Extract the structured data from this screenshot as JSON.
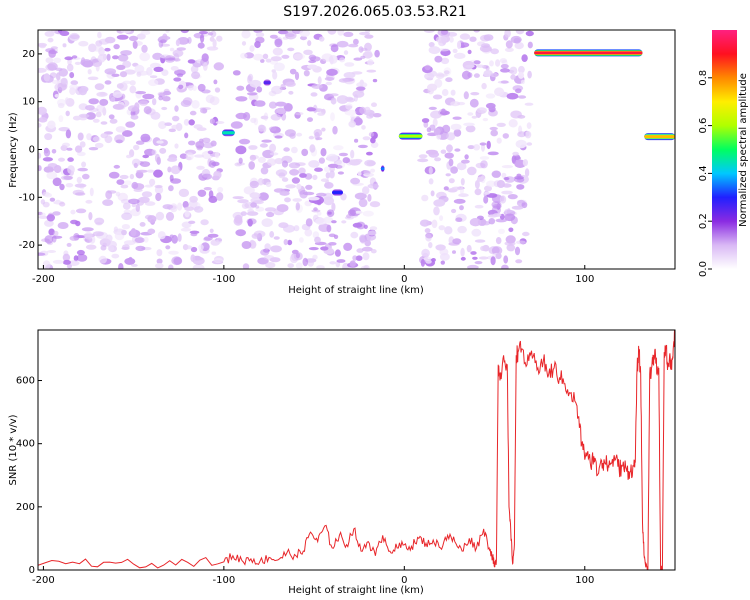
{
  "title": "S197.2026.065.03.53.R21",
  "colors": {
    "trace": "#e8262a",
    "axis": "#000000",
    "background": "#ffffff"
  },
  "chart_data": [
    {
      "type": "heatmap",
      "xlabel": "Height of straight line (km)",
      "ylabel": "Frequency (Hz)",
      "xlim": [
        -203,
        150
      ],
      "ylim": [
        -25,
        25
      ],
      "xticks": [
        -200,
        -100,
        0,
        100
      ],
      "yticks": [
        -20,
        -10,
        0,
        10,
        20
      ],
      "colorbar": {
        "label": "Normalized spectral amplitude",
        "range": [
          0,
          1
        ],
        "ticks": [
          0.0,
          0.2,
          0.4,
          0.6,
          0.8
        ],
        "tick_labels": [
          "0.0",
          "0.2",
          "0.4",
          "0.6",
          "0.8"
        ],
        "colormap": [
          "#ffffff",
          "#d9b8f5",
          "#8a2be2",
          "#2020ff",
          "#00c8ff",
          "#00ff60",
          "#b0ff00",
          "#ffee00",
          "#ff8800",
          "#ff1020",
          "#ff2080"
        ]
      },
      "noise_region": {
        "x": [
          -203,
          70
        ],
        "y": [
          -25,
          25
        ],
        "level": 0.1
      },
      "gaps_km": [
        [
          -102,
          -93
        ],
        [
          -15,
          -8
        ],
        [
          -8,
          10
        ]
      ],
      "features": [
        {
          "x": [
            72,
            132
          ],
          "y": 20.2,
          "level": 0.93
        },
        {
          "x": [
            133,
            150
          ],
          "y": 2.7,
          "level": 0.75
        },
        {
          "x": [
            -3,
            10
          ],
          "y": 2.8,
          "level": 0.6
        },
        {
          "x": [
            -101,
            -94
          ],
          "y": 3.5,
          "level": 0.45
        },
        {
          "x": [
            -40,
            -34
          ],
          "y": -9,
          "level": 0.3
        },
        {
          "x": [
            -13,
            -11
          ],
          "y": -4,
          "level": 0.35
        },
        {
          "x": [
            -78,
            -74
          ],
          "y": 14,
          "level": 0.25
        }
      ]
    },
    {
      "type": "line",
      "xlabel": "Height of straight line (km)",
      "ylabel": "SNR (10 * v/v)",
      "xlim": [
        -203,
        150
      ],
      "ylim": [
        0,
        760
      ],
      "xticks": [
        -200,
        -100,
        0,
        100
      ],
      "yticks": [
        0,
        200,
        400,
        600
      ],
      "series": [
        {
          "name": "SNR",
          "x": [
            -203,
            -180,
            -160,
            -140,
            -120,
            -100,
            -95,
            -90,
            -85,
            -80,
            -75,
            -70,
            -65,
            -60,
            -56,
            -52,
            -48,
            -44,
            -40,
            -36,
            -32,
            -28,
            -24,
            -20,
            -16,
            -12,
            -8,
            -4,
            0,
            4,
            8,
            12,
            16,
            20,
            24,
            28,
            32,
            36,
            40,
            44,
            47,
            49,
            50,
            51,
            52,
            53,
            55,
            57,
            58,
            59,
            60,
            61,
            62,
            63,
            65,
            68,
            71,
            74,
            77,
            80,
            83,
            86,
            89,
            92,
            95,
            97,
            99,
            101,
            103,
            105,
            107,
            109,
            111,
            113,
            115,
            117,
            119,
            121,
            123,
            125,
            127,
            128,
            129,
            130,
            131,
            132,
            133,
            134,
            135,
            136,
            137,
            138,
            139,
            140,
            141,
            142,
            143,
            144,
            145,
            146,
            147,
            148,
            149,
            150
          ],
          "y": [
            15,
            20,
            22,
            21,
            24,
            26,
            45,
            30,
            35,
            28,
            40,
            32,
            55,
            45,
            60,
            120,
            90,
            140,
            70,
            110,
            80,
            130,
            60,
            90,
            45,
            110,
            60,
            70,
            80,
            75,
            100,
            85,
            95,
            70,
            110,
            90,
            60,
            100,
            70,
            130,
            70,
            40,
            10,
            30,
            650,
            600,
            680,
            650,
            200,
            120,
            20,
            80,
            680,
            690,
            700,
            650,
            670,
            640,
            660,
            620,
            640,
            610,
            590,
            560,
            530,
            450,
            380,
            360,
            340,
            360,
            300,
            350,
            340,
            330,
            340,
            350,
            320,
            330,
            320,
            310,
            330,
            340,
            640,
            690,
            620,
            150,
            40,
            20,
            0,
            620,
            640,
            660,
            700,
            620,
            640,
            0,
            0,
            690,
            700,
            650,
            680,
            640,
            700,
            740
          ]
        }
      ]
    }
  ]
}
